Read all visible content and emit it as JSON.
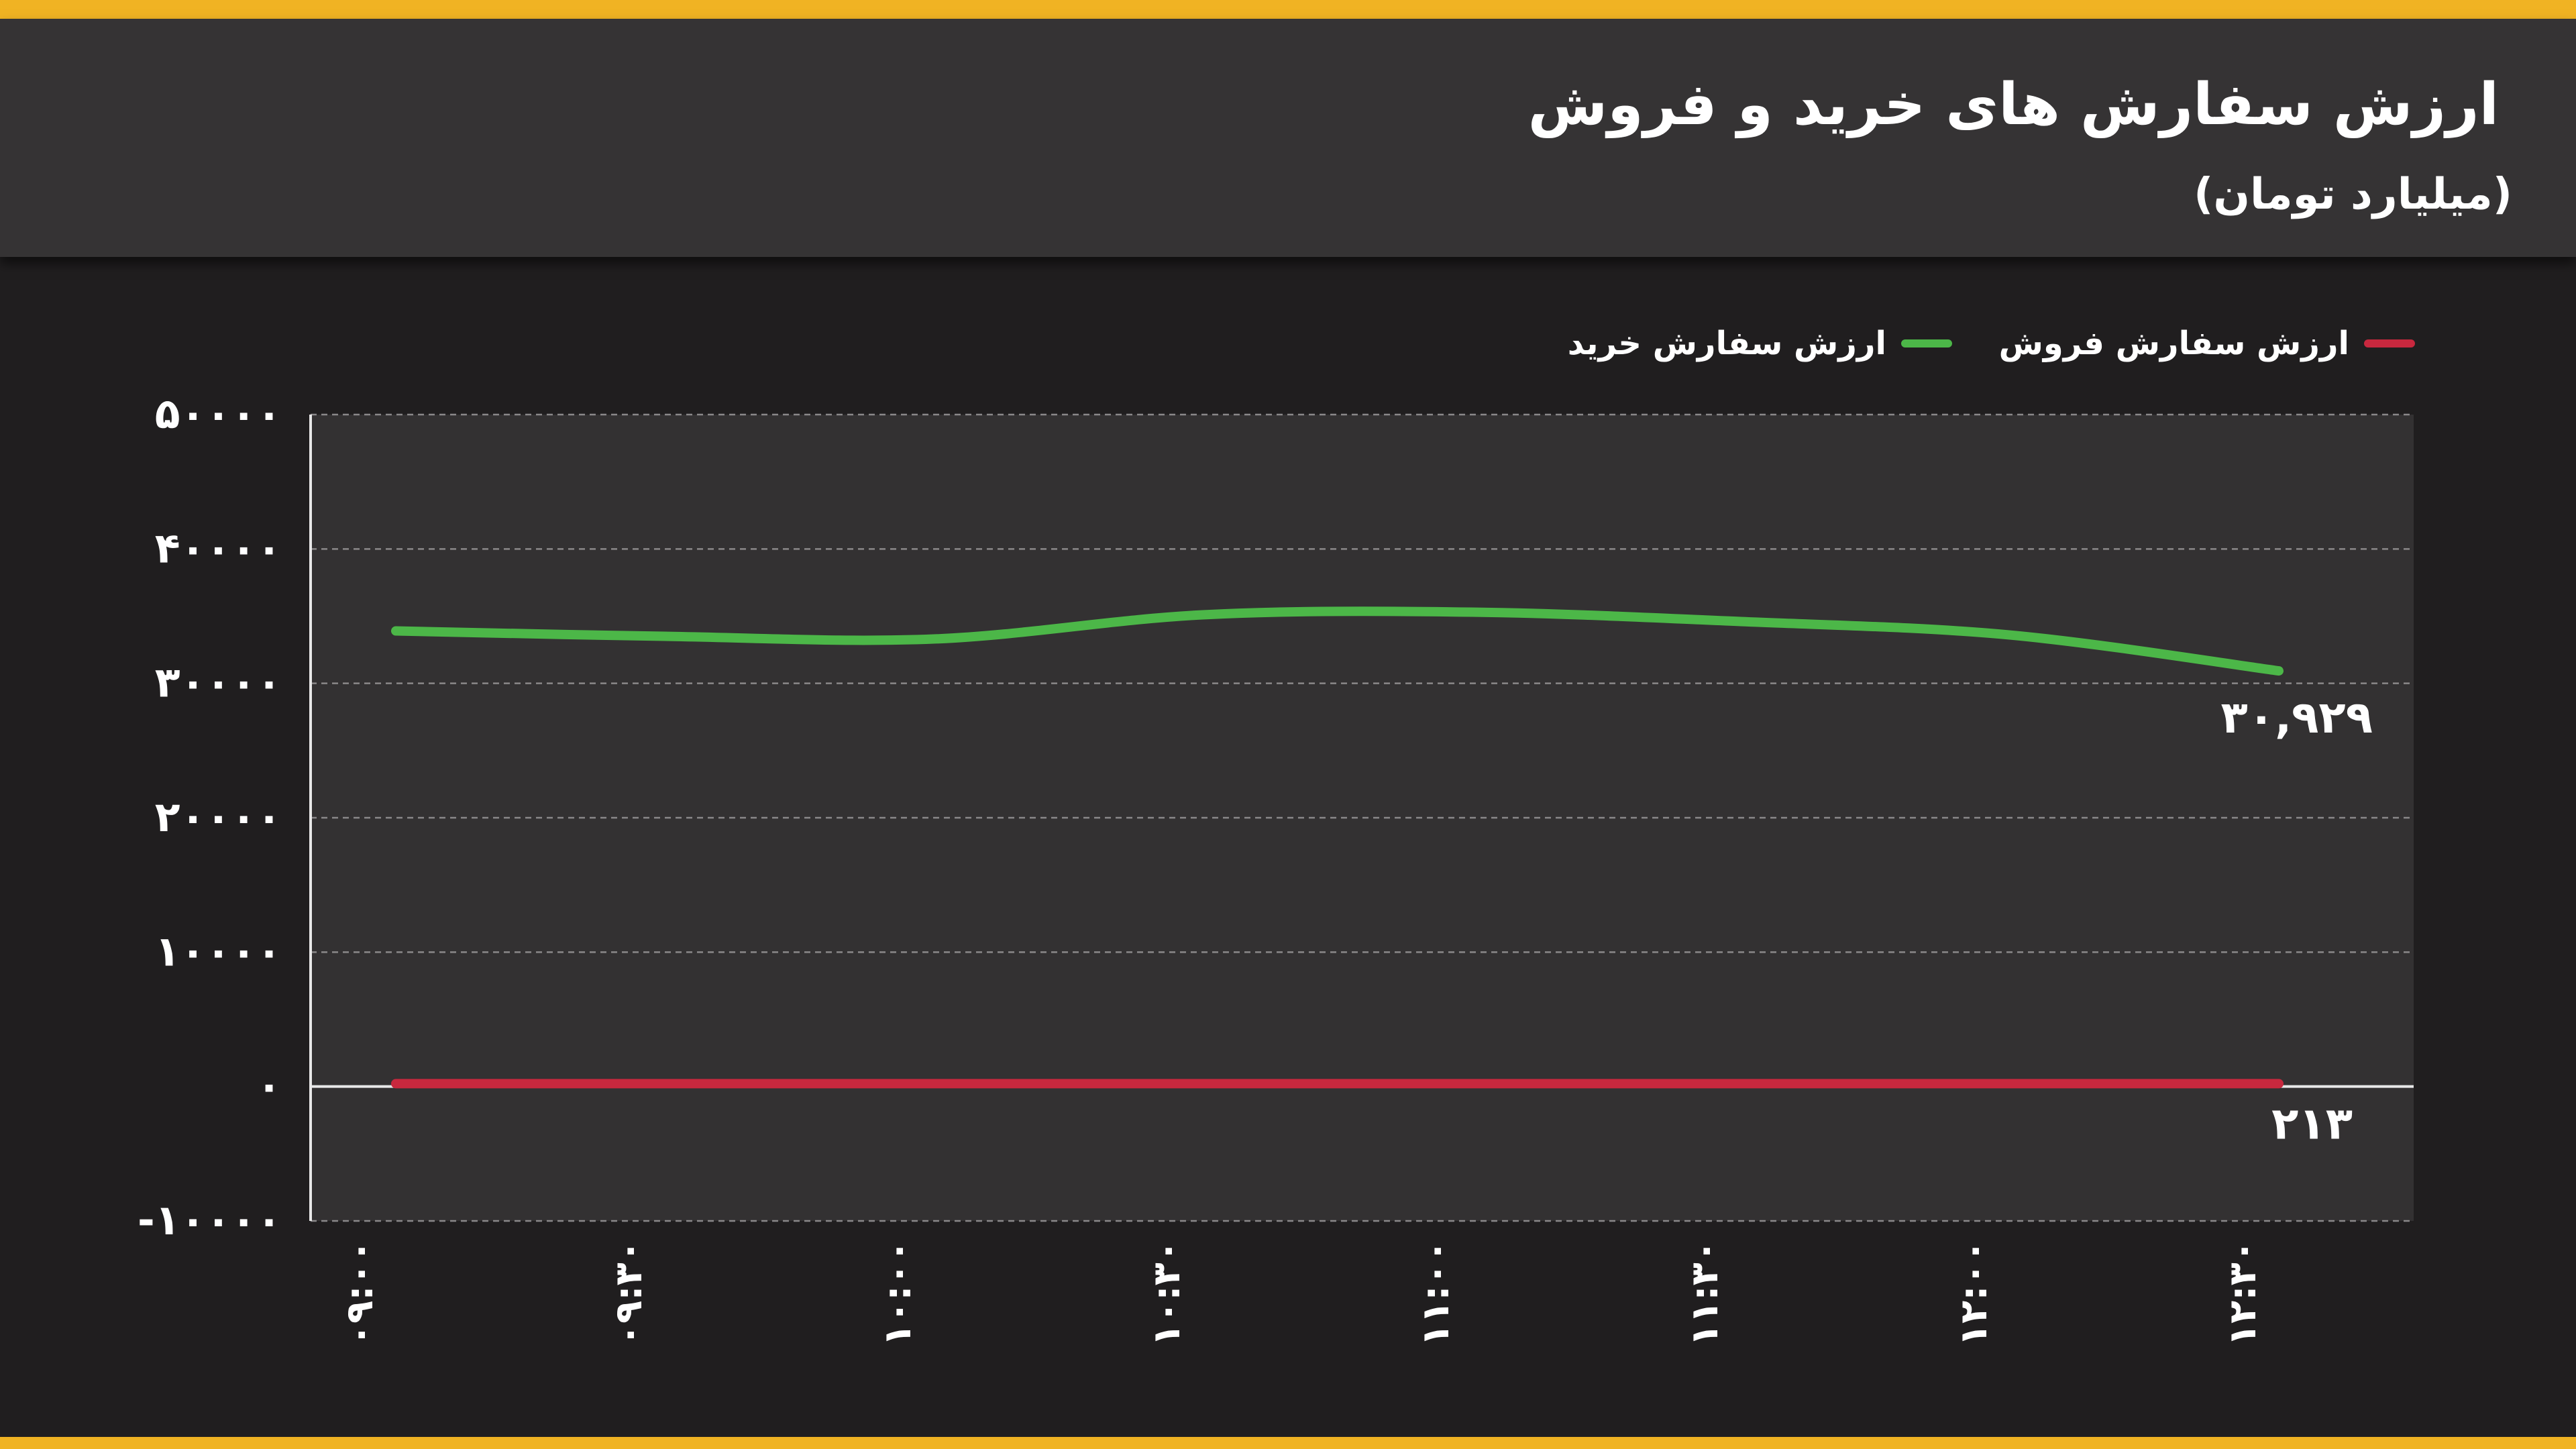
{
  "header": {
    "title": "ارزش سفارش های خرید و فروش",
    "subtitle": "(میلیارد تومان)"
  },
  "colors": {
    "accent": "#f0b323",
    "buy": "#4cb748",
    "sell": "#c8283e",
    "plot_bg": "#333132",
    "page_bg": "#201e1f"
  },
  "chart_data": {
    "type": "line",
    "x": [
      "۰۹:۰۰",
      "۰۹:۳۰",
      "۱۰:۰۰",
      "۱۰:۳۰",
      "۱۱:۰۰",
      "۱۱:۳۰",
      "۱۲:۰۰",
      "۱۲:۳۰"
    ],
    "series": [
      {
        "name": "ارزش سفارش خرید",
        "color": "#4cb748",
        "values": [
          33900,
          33500,
          33300,
          35100,
          35300,
          34600,
          33600,
          30929
        ]
      },
      {
        "name": "ارزش سفارش فروش",
        "color": "#c8283e",
        "values": [
          213,
          213,
          213,
          213,
          213,
          213,
          213,
          213
        ]
      }
    ],
    "yticks": [
      "-۱۰۰۰۰",
      "۰",
      "۱۰۰۰۰",
      "۲۰۰۰۰",
      "۳۰۰۰۰",
      "۴۰۰۰۰",
      "۵۰۰۰۰"
    ],
    "ytick_values": [
      -10000,
      0,
      10000,
      20000,
      30000,
      40000,
      50000
    ],
    "ylim": [
      -10000,
      50000
    ],
    "grid": true,
    "legend_position": "top",
    "annotations": [
      "۳۰,۹۲۹",
      "۲۱۳"
    ]
  }
}
